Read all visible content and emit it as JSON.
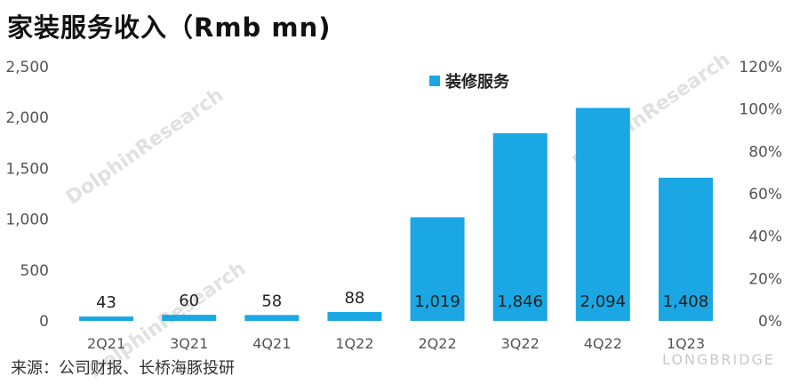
{
  "title": "家装服务收入（Rmb mn)",
  "source": "来源：公司财报、长桥海豚投研",
  "watermark": {
    "brand": "LONGBRIDGE",
    "text": "DolphinResearch"
  },
  "chart_data": {
    "type": "bar",
    "categories": [
      "2Q21",
      "3Q21",
      "4Q21",
      "1Q22",
      "2Q22",
      "3Q22",
      "4Q22",
      "1Q23"
    ],
    "series": [
      {
        "name": "装修服务",
        "values": [
          43,
          60,
          58,
          88,
          1019,
          1846,
          2094,
          1408
        ],
        "labels": [
          "43",
          "60",
          "58",
          "88",
          "1,019",
          "1,846",
          "2,094",
          "1,408"
        ]
      }
    ],
    "ylim": [
      0,
      2500
    ],
    "yticks": [
      0,
      500,
      1000,
      1500,
      2000,
      2500
    ],
    "ytick_labels": [
      "0",
      "500",
      "1,000",
      "1,500",
      "2,000",
      "2,500"
    ],
    "y2lim": [
      0,
      1.2
    ],
    "y2ticks": [
      0,
      0.2,
      0.4,
      0.6,
      0.8,
      1.0,
      1.2
    ],
    "y2tick_labels": [
      "0%",
      "20%",
      "40%",
      "60%",
      "80%",
      "100%",
      "120%"
    ],
    "legend_position": "top-center",
    "grid": false,
    "color": "#1aa7e4"
  }
}
